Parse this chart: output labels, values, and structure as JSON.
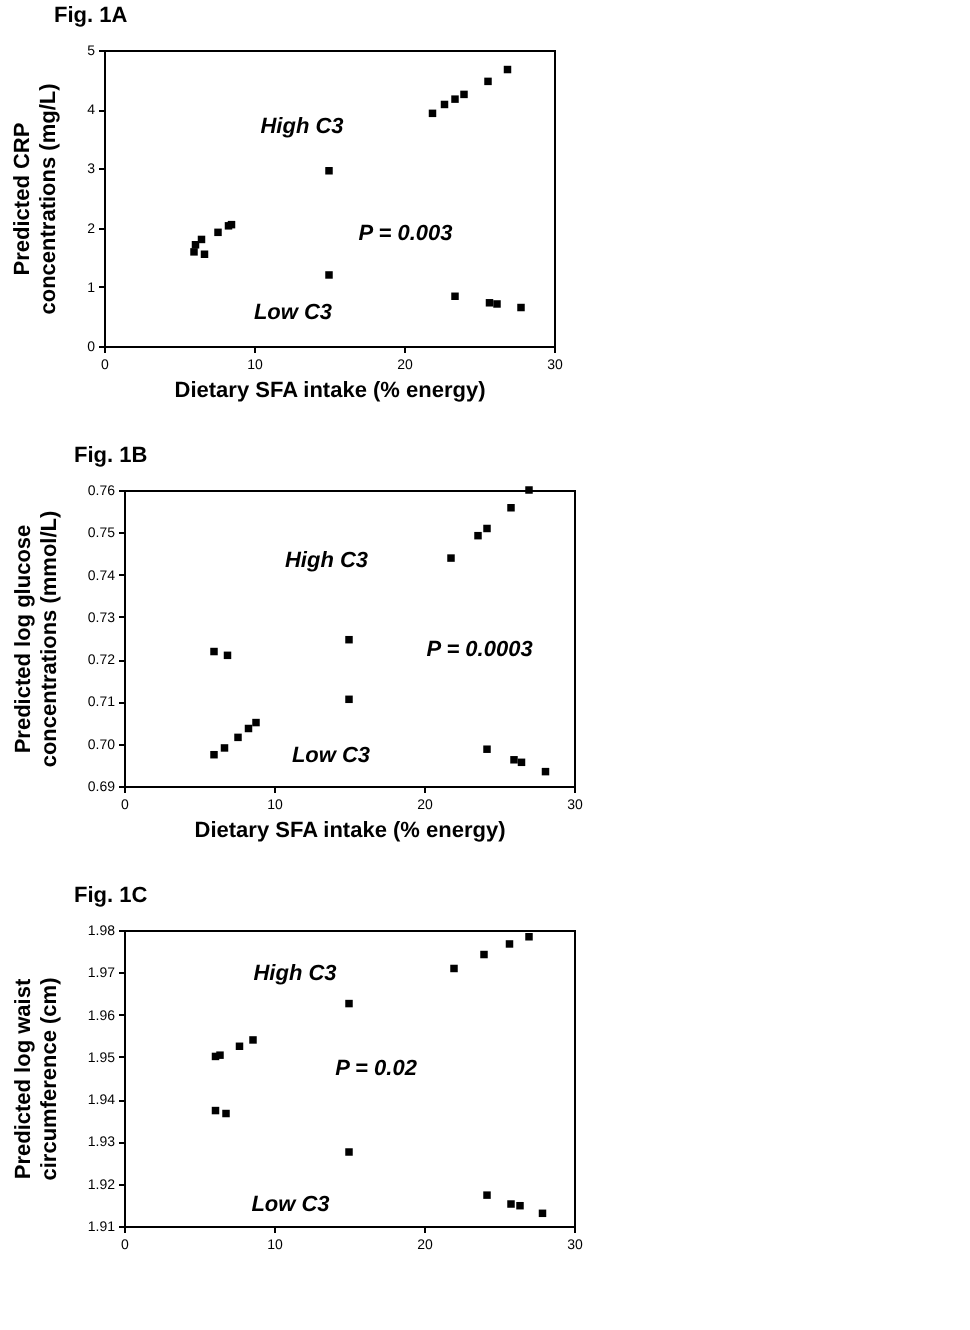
{
  "chart_data": [
    {
      "type": "scatter",
      "title": "Fig. 1A",
      "xlabel": "Dietary SFA intake (% energy)",
      "ylabel": "Predicted CRP\nconcentrations (mg/L)",
      "xlim": [
        0,
        30
      ],
      "xticks": [
        0,
        10,
        20,
        30
      ],
      "ylim": [
        0,
        5
      ],
      "yticks": [
        0,
        1,
        2,
        3,
        4,
        5
      ],
      "marker": "square",
      "grid": false,
      "series": [
        {
          "color": "#000000",
          "x": [
            6.1,
            6.5,
            7.6,
            8.3,
            8.5,
            15,
            21.9,
            22.7,
            23.4,
            24.0,
            25.6,
            26.9
          ],
          "values": [
            1.71,
            1.8,
            1.92,
            2.03,
            2.05,
            2.96,
            3.93,
            4.08,
            4.17,
            4.25,
            4.47,
            4.67
          ]
        },
        {
          "color": "#000000",
          "x": [
            6.0,
            6.7,
            15,
            23.4,
            25.7,
            26.2,
            27.8
          ],
          "values": [
            1.59,
            1.55,
            1.2,
            0.84,
            0.73,
            0.71,
            0.65
          ]
        }
      ],
      "annotations": [
        "High C3",
        "P = 0.003",
        "Low C3"
      ]
    },
    {
      "type": "scatter",
      "title": "Fig. 1B",
      "xlabel": "Dietary SFA intake (% energy)",
      "ylabel": "Predicted log glucose\nconcentrations (mmol/L)",
      "xlim": [
        0,
        30
      ],
      "xticks": [
        0,
        10,
        20,
        30
      ],
      "ylim": [
        0.69,
        0.76
      ],
      "yticks": [
        0.69,
        {
          "value": 0.7,
          "label": "0.70"
        },
        0.71,
        0.72,
        0.73,
        0.74,
        0.75,
        0.76
      ],
      "marker": "square",
      "grid": false,
      "series": [
        {
          "color": "#000000",
          "x": [
            6.0,
            6.7,
            7.6,
            8.3,
            8.8,
            15,
            21.8,
            23.6,
            24.2,
            25.8,
            27.0
          ],
          "values": [
            0.6974,
            0.699,
            0.7015,
            0.7036,
            0.705,
            0.7246,
            0.7439,
            0.7492,
            0.7509,
            0.7558,
            0.76
          ]
        },
        {
          "color": "#000000",
          "x": [
            6.0,
            6.9,
            15,
            24.2,
            26.0,
            26.5,
            28.1
          ],
          "values": [
            0.7218,
            0.7209,
            0.7105,
            0.6987,
            0.6962,
            0.6956,
            0.6934
          ]
        }
      ],
      "annotations": [
        "High C3",
        "P = 0.0003",
        "Low C3"
      ]
    },
    {
      "type": "scatter",
      "title": "Fig. 1C",
      "ylabel": "Predicted log waist\ncircumference (cm)",
      "xlim": [
        0,
        30
      ],
      "xticks": [
        0,
        10,
        20,
        30
      ],
      "ylim": [
        1.91,
        1.98
      ],
      "yticks": [
        1.91,
        1.92,
        1.93,
        1.94,
        1.95,
        1.96,
        1.97,
        1.98
      ],
      "marker": "square",
      "grid": false,
      "series": [
        {
          "color": "#000000",
          "x": [
            6.1,
            6.4,
            7.7,
            8.6,
            15,
            22.0,
            24.0,
            25.7,
            27.0
          ],
          "values": [
            1.9501,
            1.9504,
            1.9525,
            1.954,
            1.9626,
            1.9709,
            1.9742,
            1.9767,
            1.9784
          ]
        },
        {
          "color": "#000000",
          "x": [
            6.1,
            6.8,
            15,
            24.2,
            25.8,
            26.4,
            27.9
          ],
          "values": [
            1.9373,
            1.9366,
            1.9275,
            1.9173,
            1.9152,
            1.9148,
            1.913
          ]
        }
      ],
      "annotations": [
        "High C3",
        "P = 0.02",
        "Low C3"
      ]
    }
  ]
}
